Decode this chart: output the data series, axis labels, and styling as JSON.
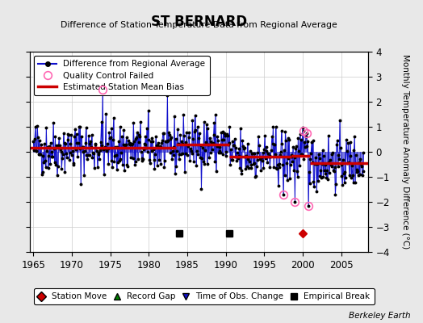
{
  "title": "ST BERNARD",
  "subtitle": "Difference of Station Temperature Data from Regional Average",
  "ylabel": "Monthly Temperature Anomaly Difference (°C)",
  "xlabel_years": [
    1965,
    1970,
    1975,
    1980,
    1985,
    1990,
    1995,
    2000,
    2005
  ],
  "ylim": [
    -4,
    4
  ],
  "xlim": [
    1964.5,
    2008.5
  ],
  "background_color": "#e8e8e8",
  "plot_bg_color": "#ffffff",
  "grid_color": "#cccccc",
  "watermark": "Berkeley Earth",
  "segments": [
    {
      "x_start": 1964.5,
      "x_end": 1983.5,
      "bias": 0.15
    },
    {
      "x_start": 1983.5,
      "x_end": 1990.5,
      "bias": 0.3
    },
    {
      "x_start": 1990.5,
      "x_end": 1998.5,
      "bias": -0.2
    },
    {
      "x_start": 1998.5,
      "x_end": 2001.0,
      "bias": -0.15
    },
    {
      "x_start": 2001.0,
      "x_end": 2008.5,
      "bias": -0.45
    }
  ],
  "empirical_breaks": [
    1984.0,
    1990.5
  ],
  "station_moves": [
    2000.0
  ],
  "time_obs_changes": [],
  "record_gaps": [],
  "qc_failed_times": [
    1974.0,
    1997.5,
    1999.0,
    2000.08,
    2000.5,
    2000.75
  ],
  "blue_color": "#1111cc",
  "red_color": "#cc0000",
  "pink_color": "#ff69b4",
  "noise_amplitude": 0.55,
  "seed": 42
}
